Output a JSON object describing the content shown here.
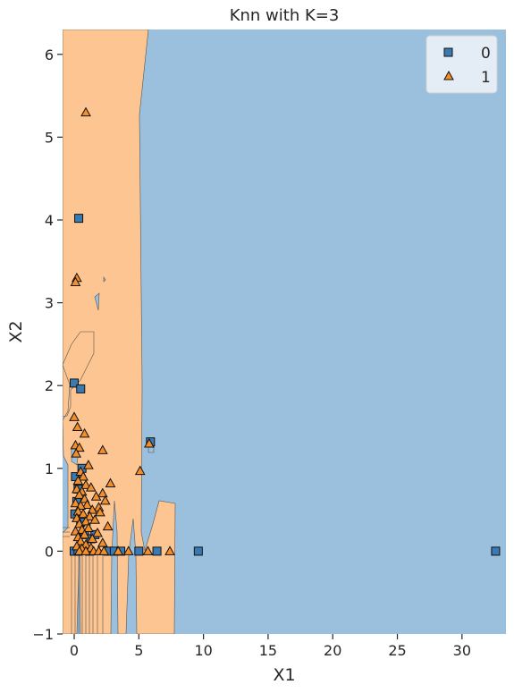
{
  "chart_data": {
    "type": "scatter",
    "title": "Knn with K=3",
    "xlabel": "X1",
    "ylabel": "X2",
    "xlim": [
      -0.9,
      33.4
    ],
    "ylim": [
      -1.0,
      6.3
    ],
    "x_ticks": [
      0,
      5,
      10,
      15,
      20,
      25,
      30
    ],
    "y_ticks": [
      -1,
      0,
      1,
      2,
      3,
      4,
      5,
      6
    ],
    "x_tick_labels": [
      "0",
      "5",
      "10",
      "15",
      "20",
      "25",
      "30"
    ],
    "y_tick_labels": [
      "−1",
      "0",
      "1",
      "2",
      "3",
      "4",
      "5",
      "6"
    ],
    "grid": false,
    "legend_position": "top-right",
    "decision_region_colors": {
      "0": "#9bc0de",
      "1": "#fdc591"
    },
    "series": [
      {
        "name": "0",
        "marker": "square",
        "color": "#3a7ab3",
        "points": [
          [
            0.35,
            4.02
          ],
          [
            0.0,
            2.03
          ],
          [
            0.5,
            1.96
          ],
          [
            5.9,
            1.32
          ],
          [
            0.6,
            1.0
          ],
          [
            0.1,
            0.9
          ],
          [
            0.3,
            0.75
          ],
          [
            0.2,
            0.6
          ],
          [
            0.05,
            0.45
          ],
          [
            0.5,
            0.35
          ],
          [
            0.8,
            0.2
          ],
          [
            1.3,
            0.15
          ],
          [
            1.6,
            0.2
          ],
          [
            0.0,
            0.0
          ],
          [
            0.3,
            0.0
          ],
          [
            1.2,
            0.0
          ],
          [
            2.6,
            0.0
          ],
          [
            3.1,
            0.0
          ],
          [
            3.6,
            0.0
          ],
          [
            5.0,
            0.0
          ],
          [
            6.4,
            0.0
          ],
          [
            9.6,
            0.0
          ],
          [
            32.6,
            0.0
          ]
        ]
      },
      {
        "name": "1",
        "marker": "triangle",
        "color": "#f28e2b",
        "points": [
          [
            0.9,
            5.3
          ],
          [
            0.2,
            3.3
          ],
          [
            0.1,
            3.25
          ],
          [
            0.0,
            1.62
          ],
          [
            0.25,
            1.5
          ],
          [
            0.8,
            1.42
          ],
          [
            0.1,
            1.28
          ],
          [
            0.4,
            1.25
          ],
          [
            0.15,
            1.18
          ],
          [
            2.2,
            1.22
          ],
          [
            5.8,
            1.3
          ],
          [
            1.1,
            1.04
          ],
          [
            5.1,
            0.97
          ],
          [
            0.5,
            0.96
          ],
          [
            0.7,
            0.9
          ],
          [
            0.3,
            0.85
          ],
          [
            2.8,
            0.82
          ],
          [
            0.9,
            0.8
          ],
          [
            1.3,
            0.77
          ],
          [
            0.2,
            0.75
          ],
          [
            0.6,
            0.72
          ],
          [
            2.2,
            0.7
          ],
          [
            0.4,
            0.68
          ],
          [
            1.7,
            0.66
          ],
          [
            0.8,
            0.63
          ],
          [
            2.4,
            0.61
          ],
          [
            0.1,
            0.58
          ],
          [
            1.0,
            0.56
          ],
          [
            0.5,
            0.55
          ],
          [
            1.9,
            0.53
          ],
          [
            1.4,
            0.5
          ],
          [
            0.3,
            0.48
          ],
          [
            2.0,
            0.47
          ],
          [
            0.7,
            0.45
          ],
          [
            1.2,
            0.42
          ],
          [
            0.2,
            0.4
          ],
          [
            1.6,
            0.38
          ],
          [
            0.9,
            0.36
          ],
          [
            0.4,
            0.33
          ],
          [
            2.6,
            0.3
          ],
          [
            1.1,
            0.28
          ],
          [
            0.6,
            0.26
          ],
          [
            0.1,
            0.24
          ],
          [
            1.8,
            0.22
          ],
          [
            0.8,
            0.2
          ],
          [
            0.3,
            0.17
          ],
          [
            1.4,
            0.15
          ],
          [
            0.5,
            0.12
          ],
          [
            2.2,
            0.1
          ],
          [
            0.9,
            0.08
          ],
          [
            0.2,
            0.06
          ],
          [
            1.3,
            0.04
          ],
          [
            0.6,
            0.03
          ],
          [
            0.4,
            0.0
          ],
          [
            0.9,
            0.0
          ],
          [
            1.5,
            0.0
          ],
          [
            1.9,
            0.0
          ],
          [
            2.3,
            0.0
          ],
          [
            3.4,
            0.0
          ],
          [
            4.2,
            0.0
          ],
          [
            5.7,
            0.0
          ],
          [
            7.4,
            0.0
          ]
        ]
      }
    ]
  }
}
